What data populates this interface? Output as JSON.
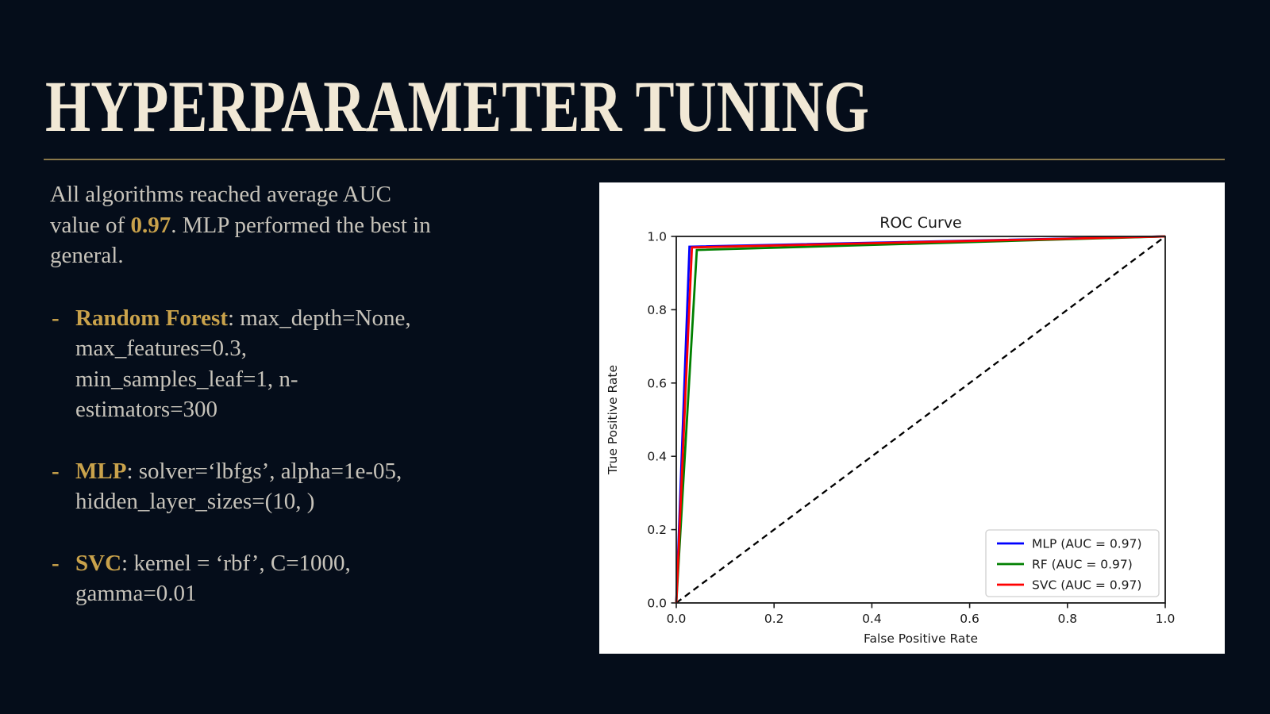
{
  "slide": {
    "title": "HYPERPARAMETER TUNING",
    "intro": {
      "lines": [
        [
          {
            "t": "All algorithms reached average AUC"
          }
        ],
        [
          {
            "t": "value of "
          },
          {
            "t": "0.97",
            "accent": true
          },
          {
            "t": ". MLP performed the best in"
          }
        ],
        [
          {
            "t": "general."
          }
        ]
      ]
    },
    "bullet_marker": "-",
    "bullets": [
      {
        "lines": [
          [
            {
              "t": "Random Forest",
              "accent": true
            },
            {
              "t": ": max_depth=None,"
            }
          ],
          [
            {
              "t": "max_features=0.3,"
            }
          ],
          [
            {
              "t": "min_samples_leaf=1, n-"
            }
          ],
          [
            {
              "t": "estimators=300"
            }
          ]
        ]
      },
      {
        "lines": [
          [
            {
              "t": "MLP",
              "accent": true
            },
            {
              "t": ": solver=‘lbfgs’, alpha=1e-05,"
            }
          ],
          [
            {
              "t": "hidden_layer_sizes=(10, )"
            }
          ]
        ]
      },
      {
        "lines": [
          [
            {
              "t": "SVC",
              "accent": true
            },
            {
              "t": ": kernel = ‘rbf’, C=1000,"
            }
          ],
          [
            {
              "t": "gamma=0.01"
            }
          ]
        ]
      }
    ]
  },
  "colors": {
    "background": "#050d1a",
    "title_text": "#f1e8d5",
    "divider": "#8a784a",
    "body_text": "#c7c3ba",
    "accent_gold": "#c9a24b",
    "panel_bg": "#ffffff",
    "chart_text": "#1a1a1a",
    "legend_border": "#cfcfcf"
  },
  "chart_data": {
    "type": "line",
    "title": "ROC Curve",
    "xlabel": "False Positive Rate",
    "ylabel": "True Positive Rate",
    "xlim": [
      0,
      1
    ],
    "ylim": [
      0,
      1
    ],
    "xticks": [
      0.0,
      0.2,
      0.4,
      0.6,
      0.8,
      1.0
    ],
    "yticks": [
      0.0,
      0.2,
      0.4,
      0.6,
      0.8,
      1.0
    ],
    "grid": false,
    "legend_position": "lower right",
    "series": [
      {
        "name": "MLP (AUC = 0.97)",
        "color": "#0000ff",
        "auc": 0.97,
        "points": [
          [
            0,
            0
          ],
          [
            0.027,
            0.972
          ],
          [
            1,
            1
          ]
        ]
      },
      {
        "name": "RF (AUC = 0.97)",
        "color": "#008000",
        "auc": 0.97,
        "points": [
          [
            0,
            0
          ],
          [
            0.042,
            0.963
          ],
          [
            1,
            1
          ]
        ]
      },
      {
        "name": "SVC (AUC = 0.97)",
        "color": "#ff0000",
        "auc": 0.97,
        "points": [
          [
            0,
            0
          ],
          [
            0.032,
            0.97
          ],
          [
            1,
            1
          ]
        ]
      }
    ],
    "reference_line": {
      "name": "chance-diagonal",
      "style": "dashed",
      "color": "#000000",
      "points": [
        [
          0,
          0
        ],
        [
          1,
          1
        ]
      ]
    }
  }
}
